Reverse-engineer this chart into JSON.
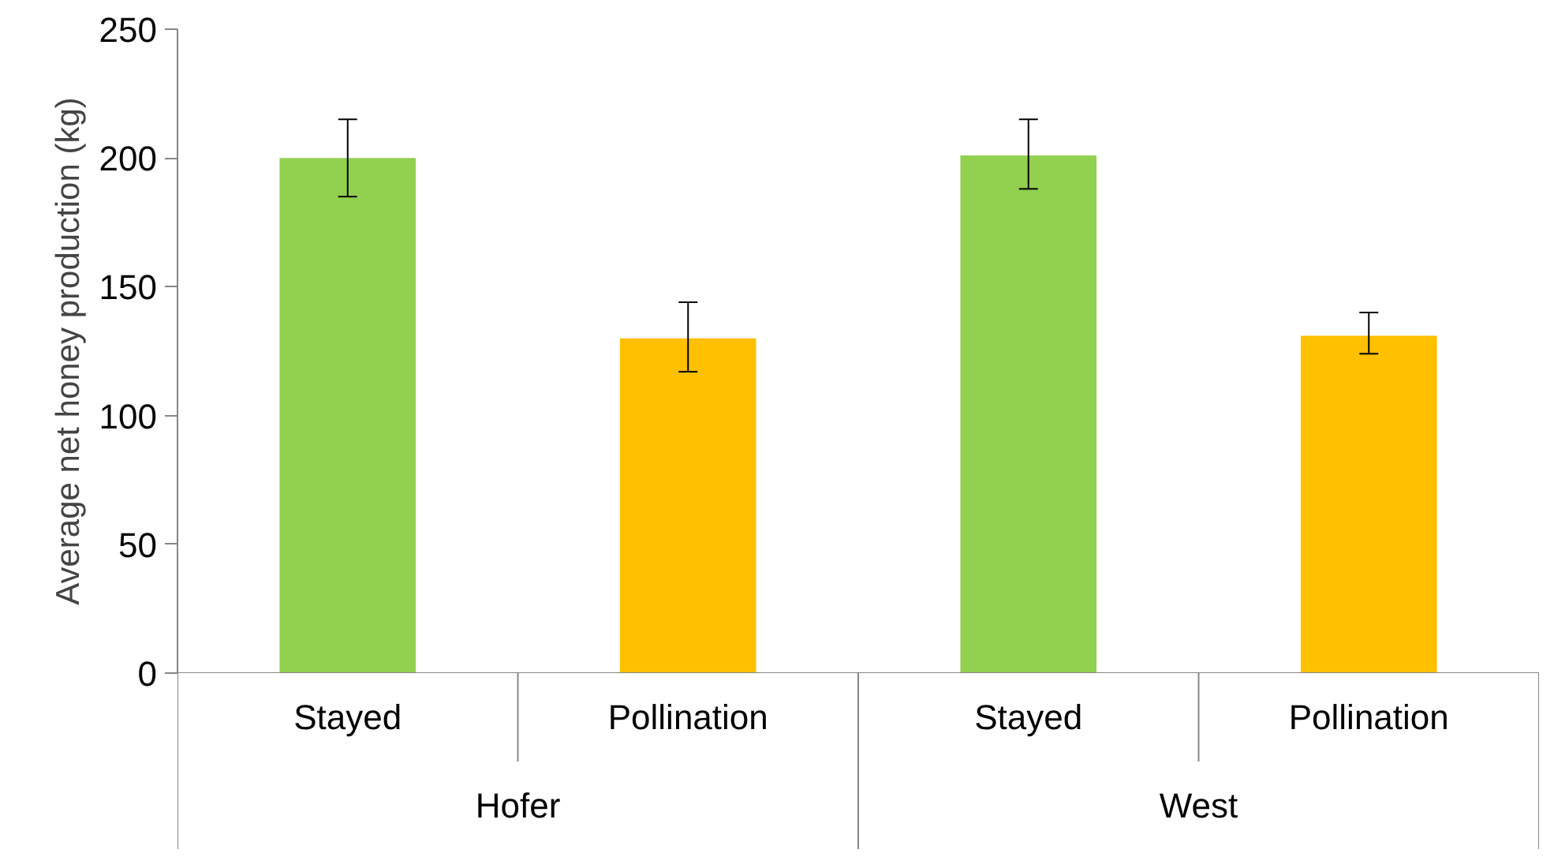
{
  "chart_data": {
    "type": "bar",
    "ylabel": "Average net honey production (kg)",
    "categories": [
      "Stayed",
      "Pollination",
      "Stayed",
      "Pollination"
    ],
    "values": [
      200,
      130,
      201,
      131
    ],
    "colors": [
      "#92d050",
      "#ffc000",
      "#92d050",
      "#ffc000"
    ],
    "errors": [
      [
        185,
        215
      ],
      [
        117,
        144
      ],
      [
        188,
        215
      ],
      [
        124,
        140
      ]
    ],
    "annotations": [
      "Hofer",
      "West"
    ],
    "ylim": [
      0,
      250
    ],
    "yticks": [
      0,
      50,
      100,
      150,
      200,
      250
    ],
    "grid": false
  }
}
